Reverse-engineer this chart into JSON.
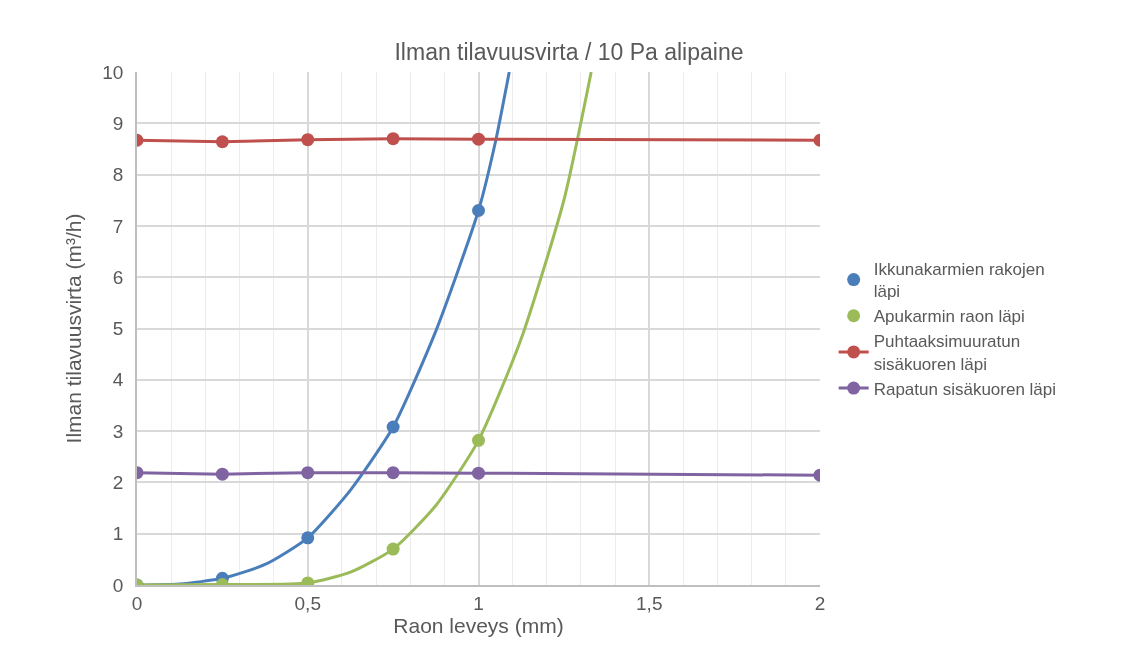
{
  "chart_data": {
    "type": "scatter",
    "title": "Ilman tilavuusvirta / 10 Pa alipaine",
    "xlabel": "Raon leveys (mm)",
    "ylabel": "Ilman tilavuusvirta (m³/h)",
    "xlim": [
      0,
      2
    ],
    "xticks": [
      {
        "value": 0,
        "label": "0"
      },
      {
        "value": 0.5,
        "label": "0,5"
      },
      {
        "value": 1,
        "label": "1"
      },
      {
        "value": 1.5,
        "label": "1,5"
      },
      {
        "value": 2,
        "label": "2"
      }
    ],
    "ylim": [
      0,
      10
    ],
    "yticks": [
      0,
      1,
      2,
      3,
      4,
      5,
      6,
      7,
      8,
      9,
      10
    ],
    "grid": true,
    "legend": "right",
    "marker": "circle",
    "series": [
      {
        "type": "line",
        "color": "#4a7ebb",
        "marker": "none",
        "x": [
          0,
          0.125,
          0.25,
          0.375,
          0.5,
          0.625,
          0.75,
          0.875,
          1,
          1.05,
          1.09
        ],
        "values": [
          0,
          0.02,
          0.13,
          0.4,
          0.92,
          1.85,
          3.08,
          4.95,
          7.3,
          8.65,
          10
        ]
      },
      {
        "type": "line",
        "color": "#9bbb59",
        "marker": "none",
        "x": [
          0,
          0.25,
          0.5,
          0.625,
          0.75,
          0.875,
          1,
          1.125,
          1.25,
          1.33
        ],
        "values": [
          0,
          0.01,
          0.04,
          0.25,
          0.7,
          1.55,
          2.82,
          4.8,
          7.5,
          10
        ]
      },
      {
        "name": "Ikkunakarmien rakojen läpi",
        "color": "#4a7ebb",
        "x": [
          0,
          0.25,
          0.5,
          0.75,
          1
        ],
        "values": [
          0,
          0.13,
          0.92,
          3.08,
          7.3
        ]
      },
      {
        "name": "Apukarmin raon läpi",
        "color": "#9bbb59",
        "x": [
          0,
          0.25,
          0.5,
          0.75,
          1
        ],
        "values": [
          0,
          0.01,
          0.04,
          0.7,
          2.82
        ]
      },
      {
        "type": "line",
        "name": "Puhtaaksimuuratun sisäkuoren läpi",
        "color": "#c0504d",
        "x": [
          0,
          0.25,
          0.5,
          0.75,
          1,
          2
        ],
        "values": [
          8.67,
          8.64,
          8.68,
          8.7,
          8.69,
          8.67
        ]
      },
      {
        "type": "line",
        "name": "Rapatun sisäkuoren läpi",
        "color": "#8064a2",
        "x": [
          0,
          0.25,
          0.5,
          0.75,
          1,
          2
        ],
        "values": [
          2.19,
          2.16,
          2.19,
          2.19,
          2.18,
          2.14
        ]
      }
    ]
  }
}
